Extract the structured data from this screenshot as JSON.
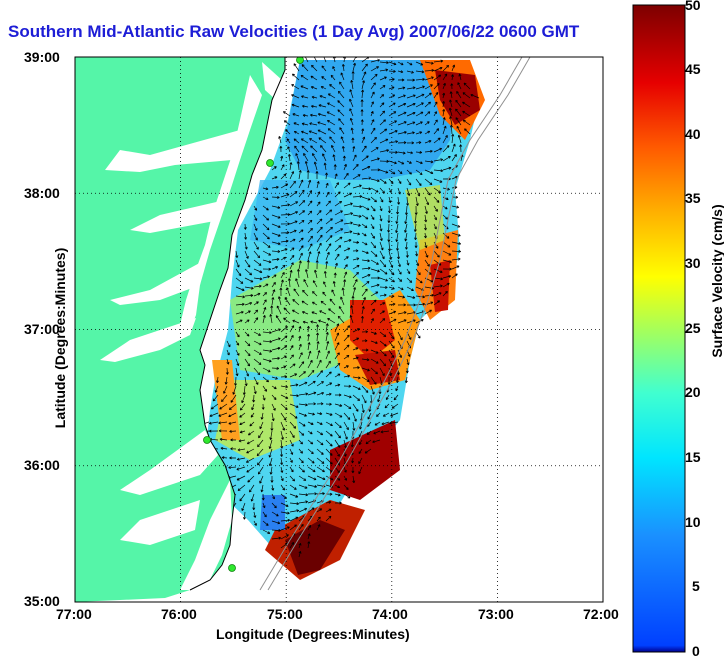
{
  "map": {
    "title": "Southern Mid-Atlantic Raw Velocities (1 Day Avg) 2007/06/22 0600 GMT",
    "xlabel": "Longitude (Degrees:Minutes)",
    "ylabel": "Latitude (Degrees:Minutes)",
    "x_ticks": [
      "77:00",
      "76:00",
      "75:00",
      "74:00",
      "73:00",
      "72:00"
    ],
    "y_ticks": [
      "39:00",
      "38:00",
      "37:00",
      "36:00",
      "35:00"
    ],
    "lon_range": [
      -77,
      -72
    ],
    "lat_range": [
      35,
      39
    ],
    "grid": "dotted",
    "land_color": "#55f5a8",
    "coast_color": "#000000",
    "station_color": "#2ee82e",
    "colorbar": {
      "label": "Surface Velocity (cm/s)",
      "ticks": [
        "0",
        "5",
        "10",
        "15",
        "20",
        "25",
        "30",
        "35",
        "40",
        "45",
        "50"
      ],
      "range": [
        0,
        50
      ],
      "colormap": "jet",
      "placement": "right"
    }
  }
}
